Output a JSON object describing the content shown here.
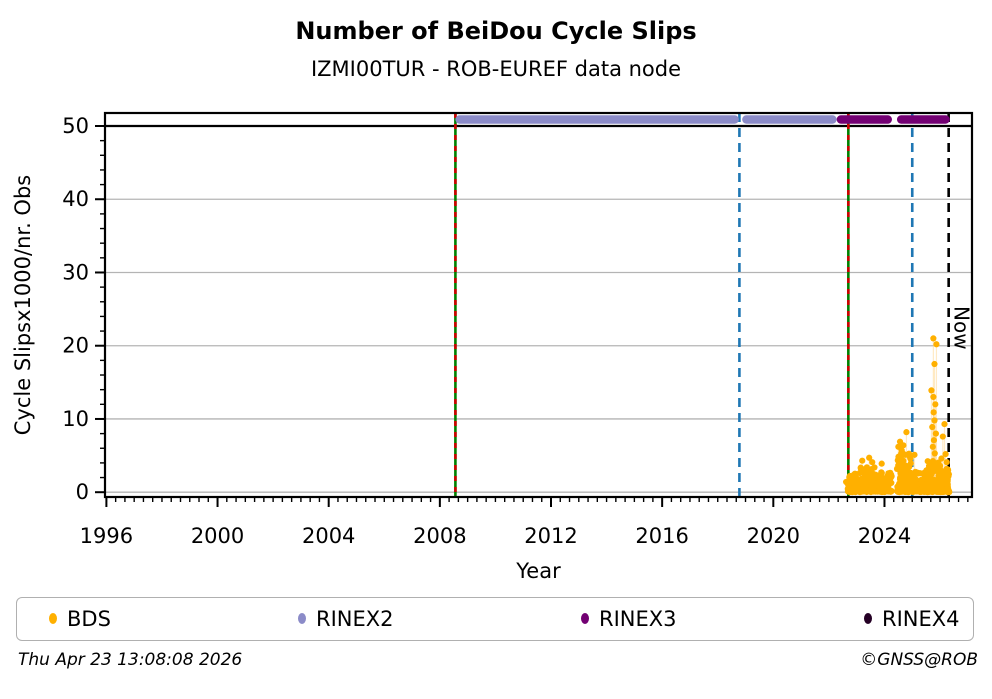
{
  "title": "Number of BeiDou Cycle Slips",
  "subtitle": "IZMI00TUR - ROB-EUREF data node",
  "footer": {
    "timestamp": "Thu Apr 23 13:08:08 2026",
    "credit": "©GNSS@ROB"
  },
  "legend": [
    {
      "label": "BDS",
      "color": "#ffb000"
    },
    {
      "label": "RINEX2",
      "color": "#8b8bc8"
    },
    {
      "label": "RINEX3",
      "color": "#730073"
    },
    {
      "label": "RINEX4",
      "color": "#250025"
    }
  ],
  "chart_data": {
    "type": "scatter",
    "title": "Number of BeiDou Cycle Slips",
    "subtitle": "IZMI00TUR - ROB-EUREF data node",
    "xlabel": "Year",
    "ylabel": "Cycle Slipsx1000/nr. Obs",
    "xlim": [
      1995.95,
      2027.15
    ],
    "ylim": [
      0,
      50
    ],
    "x_major_ticks": [
      1996,
      2000,
      2004,
      2008,
      2012,
      2016,
      2020,
      2024
    ],
    "x_minor_step": 0.33333,
    "y_major_ticks": [
      0,
      10,
      20,
      30,
      40,
      50
    ],
    "y_minor_step": 2,
    "grid": "horizontal",
    "grid_color": "#b4b4b4",
    "cap_line_value": 50,
    "now_label": "Now",
    "vlines": [
      {
        "year": 2008.56,
        "style": "green-red-dashed"
      },
      {
        "year": 2018.78,
        "style": "blue-dashed"
      },
      {
        "year": 2022.7,
        "style": "green-red-dashed"
      },
      {
        "year": 2025.0,
        "style": "blue-dashed"
      },
      {
        "year": 2026.31,
        "style": "black-dashed",
        "label": "Now"
      }
    ],
    "availability_bands": [
      {
        "name": "RINEX2",
        "color": "#8b8bc8",
        "value": 50.9,
        "segments": [
          [
            2008.56,
            2018.76
          ],
          [
            2018.88,
            2022.28
          ]
        ]
      },
      {
        "name": "RINEX3",
        "color": "#730073",
        "value": 50.9,
        "segments": [
          [
            2022.28,
            2024.27
          ],
          [
            2024.45,
            2026.35
          ]
        ]
      }
    ],
    "series": [
      {
        "name": "BDS",
        "color": "#ffb000",
        "stem_color": "#ffd27f",
        "dense_clusters": [
          {
            "x0": 2022.68,
            "x1": 2023.05,
            "n": 100,
            "vmax": 2.4
          },
          {
            "x0": 2023.05,
            "x1": 2023.65,
            "n": 120,
            "vmax": 3.4
          },
          {
            "x0": 2023.65,
            "x1": 2024.27,
            "n": 100,
            "vmax": 2.6
          },
          {
            "x0": 2024.45,
            "x1": 2024.98,
            "n": 120,
            "vmax": 5.2
          },
          {
            "x0": 2024.98,
            "x1": 2025.55,
            "n": 130,
            "vmax": 3.0
          },
          {
            "x0": 2025.55,
            "x1": 2025.95,
            "n": 100,
            "vmax": 4.2
          },
          {
            "x0": 2025.95,
            "x1": 2026.33,
            "n": 120,
            "vmax": 3.2
          }
        ],
        "points": [
          [
            2022.62,
            1.4
          ],
          [
            2023.2,
            4.3
          ],
          [
            2023.45,
            4.7
          ],
          [
            2023.56,
            4.1
          ],
          [
            2023.9,
            3.9
          ],
          [
            2024.5,
            6.2
          ],
          [
            2024.56,
            6.9
          ],
          [
            2024.62,
            5.7
          ],
          [
            2024.68,
            6.4
          ],
          [
            2024.74,
            5.1
          ],
          [
            2024.79,
            8.2
          ],
          [
            2024.9,
            5.1
          ],
          [
            2025.08,
            5.1
          ],
          [
            2025.69,
            13.9
          ],
          [
            2025.72,
            8.9
          ],
          [
            2025.74,
            6.2
          ],
          [
            2025.76,
            21.0
          ],
          [
            2025.76,
            13.0
          ],
          [
            2025.77,
            10.9
          ],
          [
            2025.78,
            7.1
          ],
          [
            2025.8,
            17.5
          ],
          [
            2025.8,
            9.8
          ],
          [
            2025.81,
            5.3
          ],
          [
            2025.83,
            12.0
          ],
          [
            2025.85,
            8.0
          ],
          [
            2025.87,
            20.2
          ],
          [
            2026.0,
            3.6
          ],
          [
            2026.05,
            4.6
          ],
          [
            2026.1,
            7.6
          ],
          [
            2026.16,
            9.3
          ],
          [
            2026.2,
            5.2
          ],
          [
            2026.24,
            4.1
          ],
          [
            2026.29,
            3.0
          ]
        ]
      }
    ]
  }
}
